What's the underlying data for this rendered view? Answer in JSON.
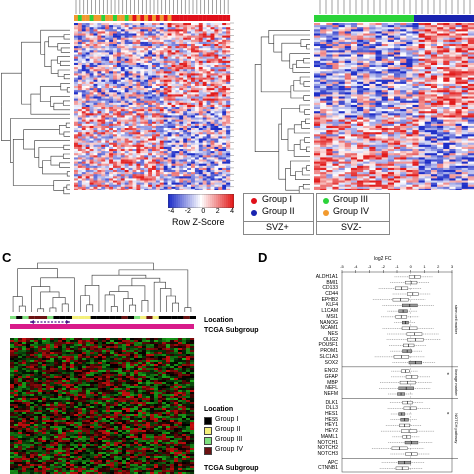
{
  "colors": {
    "group1": "#e0101a",
    "group2": "#1a24b0",
    "group3": "#2bd33a",
    "group4": "#f29a2e",
    "heat_low": "#1f2fc8",
    "heat_mid": "#ffffff",
    "heat_high": "#e21c1c",
    "c_heat_low": "#1db81d",
    "c_heat_mid": "#000000",
    "c_heat_high": "#e01010",
    "c_location_g1": "#000000",
    "c_location_g2": "#f4f07a",
    "c_location_g3": "#7ee07e",
    "c_location_g4": "#6a1212"
  },
  "panel_c": {
    "letter": "C"
  },
  "panel_d": {
    "letter": "D"
  },
  "color_key": {
    "title": "Row Z-Score",
    "ticks": [
      "-4",
      "-2",
      "0",
      "2",
      "4"
    ]
  },
  "legend_svz_plus": {
    "items": [
      {
        "label": "Group I",
        "color": "#e0101a"
      },
      {
        "label": "Group II",
        "color": "#1a24b0"
      }
    ],
    "caption": "SVZ+"
  },
  "legend_svz_minus": {
    "items": [
      {
        "label": "Group III",
        "color": "#2bd33a"
      },
      {
        "label": "Group IV",
        "color": "#f29a2e"
      }
    ],
    "caption": "SVZ-"
  },
  "panel_c_labels": {
    "location": "Location",
    "tcga": "TCGA Subgroup",
    "location_legend_title": "Location",
    "tcga_bottom": "TCGA Subgroup",
    "groups": [
      {
        "label": "Group I",
        "color": "#000000"
      },
      {
        "label": "Group II",
        "color": "#f4f07a"
      },
      {
        "label": "Group III",
        "color": "#7ee07e"
      },
      {
        "label": "Group IV",
        "color": "#6a1212"
      }
    ]
  },
  "panel_d_axis": {
    "title": "log2 FC",
    "ticks": [
      "-5",
      "-4",
      "-3",
      "-2",
      "-1",
      "0",
      "1",
      "2",
      "3"
    ]
  },
  "panel_d_genes": {
    "stem": [
      "ALDH1A1",
      "BMI1",
      "CD133",
      "CD44",
      "EPHB2",
      "KLF4",
      "L1CAM",
      "MSI1",
      "NANOG",
      "NCAM1",
      "NES",
      "OLIG2",
      "POU5F1",
      "PROM1",
      "SLC1A3",
      "SOX2"
    ],
    "lineage": [
      "ENO2",
      "GFAP",
      "MBP",
      "NEFL",
      "NEFM"
    ],
    "notch": [
      "DLK1",
      "DLL3",
      "HES1",
      "HES5",
      "HEY1",
      "HEY2",
      "MAML1",
      "NOTCH1",
      "NOTCH2",
      "NOTCH3"
    ],
    "wnt": [
      "APC",
      "CTNNB1"
    ]
  },
  "panel_d_sections": {
    "stem": "stem cell marker",
    "lineage": "lineage marker",
    "notch": "NOTCH pathway"
  },
  "panel_d_markers": [
    "*",
    "*"
  ]
}
